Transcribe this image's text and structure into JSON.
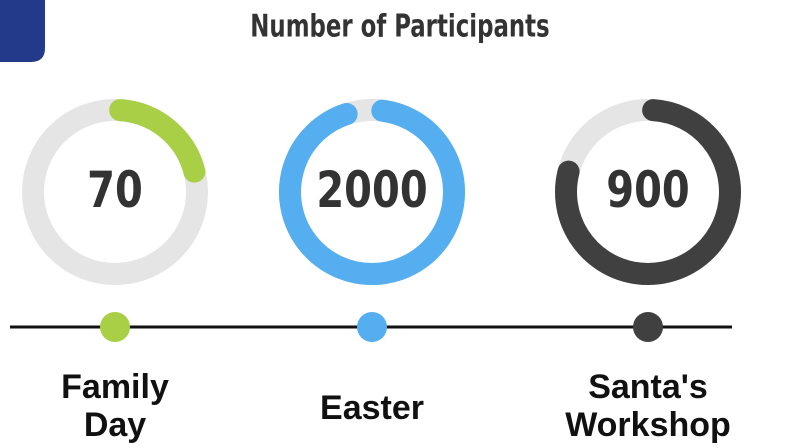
{
  "chart_data": {
    "type": "gauge",
    "title": "Number of Participants",
    "categories": [
      "Family Day",
      "Easter",
      "Santa's Workshop"
    ],
    "values": [
      70,
      2000,
      900
    ],
    "percent": [
      20,
      97,
      78
    ],
    "colors": [
      "#a8cf45",
      "#55aef0",
      "#404040"
    ],
    "track_color": "#e5e5e5"
  }
}
